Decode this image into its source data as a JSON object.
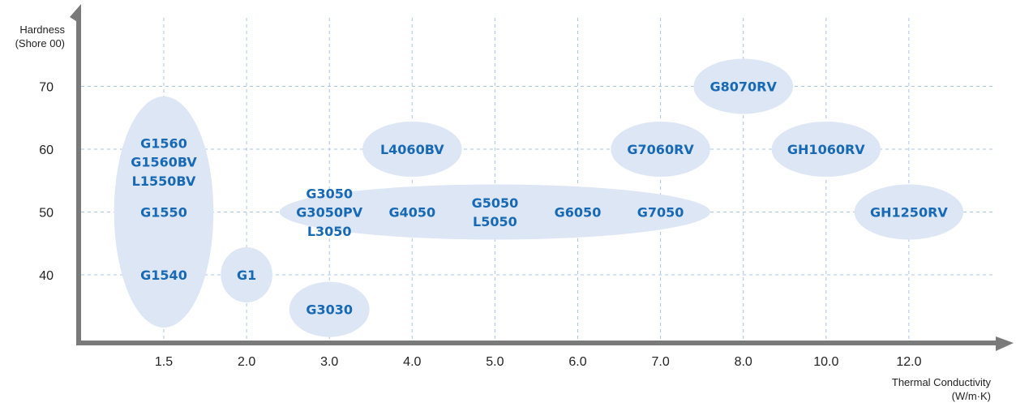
{
  "chart_data": {
    "type": "scatter",
    "title": "",
    "xlabel": "Thermal Conductivity",
    "xlabel_unit": "(W/m·K)",
    "ylabel": "Hardness",
    "ylabel_unit": "(Shore 00)",
    "x_categories": [
      "1.5",
      "2.0",
      "3.0",
      "4.0",
      "5.0",
      "6.0",
      "7.0",
      "8.0",
      "10.0",
      "12.0"
    ],
    "y_ticks": [
      40,
      50,
      60,
      70
    ],
    "ylim": [
      30,
      75
    ],
    "grid": true,
    "colors": {
      "text": "#1769b5",
      "bubble": "#dde6f4",
      "axis": "#7a7a7a",
      "grid": "#a9c5e8"
    },
    "groups": [
      {
        "x_from": "1.5",
        "x_to": "1.5",
        "y_from": 36,
        "y_to": 64
      },
      {
        "x_from": "2.0",
        "x_to": "2.0",
        "y_from": 40,
        "y_to": 40
      },
      {
        "x_from": "3.0",
        "x_to": "3.0",
        "y_from": 34.5,
        "y_to": 34.5
      },
      {
        "x_from": "4.0",
        "x_to": "4.0",
        "y_from": 60,
        "y_to": 60
      },
      {
        "x_from": "3.0",
        "x_to": "7.0",
        "y_from": 50,
        "y_to": 50
      },
      {
        "x_from": "7.0",
        "x_to": "7.0",
        "y_from": 60,
        "y_to": 60
      },
      {
        "x_from": "8.0",
        "x_to": "8.0",
        "y_from": 70,
        "y_to": 70
      },
      {
        "x_from": "10.0",
        "x_to": "10.0",
        "y_from": 60,
        "y_to": 60
      },
      {
        "x_from": "12.0",
        "x_to": "12.0",
        "y_from": 50,
        "y_to": 50
      }
    ],
    "points": [
      {
        "label": "G1560",
        "x": "1.5",
        "y": 61
      },
      {
        "label": "G1560BV",
        "x": "1.5",
        "y": 58
      },
      {
        "label": "L1550BV",
        "x": "1.5",
        "y": 55
      },
      {
        "label": "G1550",
        "x": "1.5",
        "y": 50
      },
      {
        "label": "G1540",
        "x": "1.5",
        "y": 40
      },
      {
        "label": "G1",
        "x": "2.0",
        "y": 40
      },
      {
        "label": "G3050",
        "x": "3.0",
        "y": 53
      },
      {
        "label": "G3050PV",
        "x": "3.0",
        "y": 50
      },
      {
        "label": "L3050",
        "x": "3.0",
        "y": 47
      },
      {
        "label": "G3030",
        "x": "3.0",
        "y": 34.5
      },
      {
        "label": "L4060BV",
        "x": "4.0",
        "y": 60
      },
      {
        "label": "G4050",
        "x": "4.0",
        "y": 50
      },
      {
        "label": "G5050",
        "x": "5.0",
        "y": 51.5
      },
      {
        "label": "L5050",
        "x": "5.0",
        "y": 48.5
      },
      {
        "label": "G6050",
        "x": "6.0",
        "y": 50
      },
      {
        "label": "G7050",
        "x": "7.0",
        "y": 50
      },
      {
        "label": "G7060RV",
        "x": "7.0",
        "y": 60
      },
      {
        "label": "G8070RV",
        "x": "8.0",
        "y": 70
      },
      {
        "label": "GH1060RV",
        "x": "10.0",
        "y": 60
      },
      {
        "label": "GH1250RV",
        "x": "12.0",
        "y": 50
      }
    ]
  }
}
